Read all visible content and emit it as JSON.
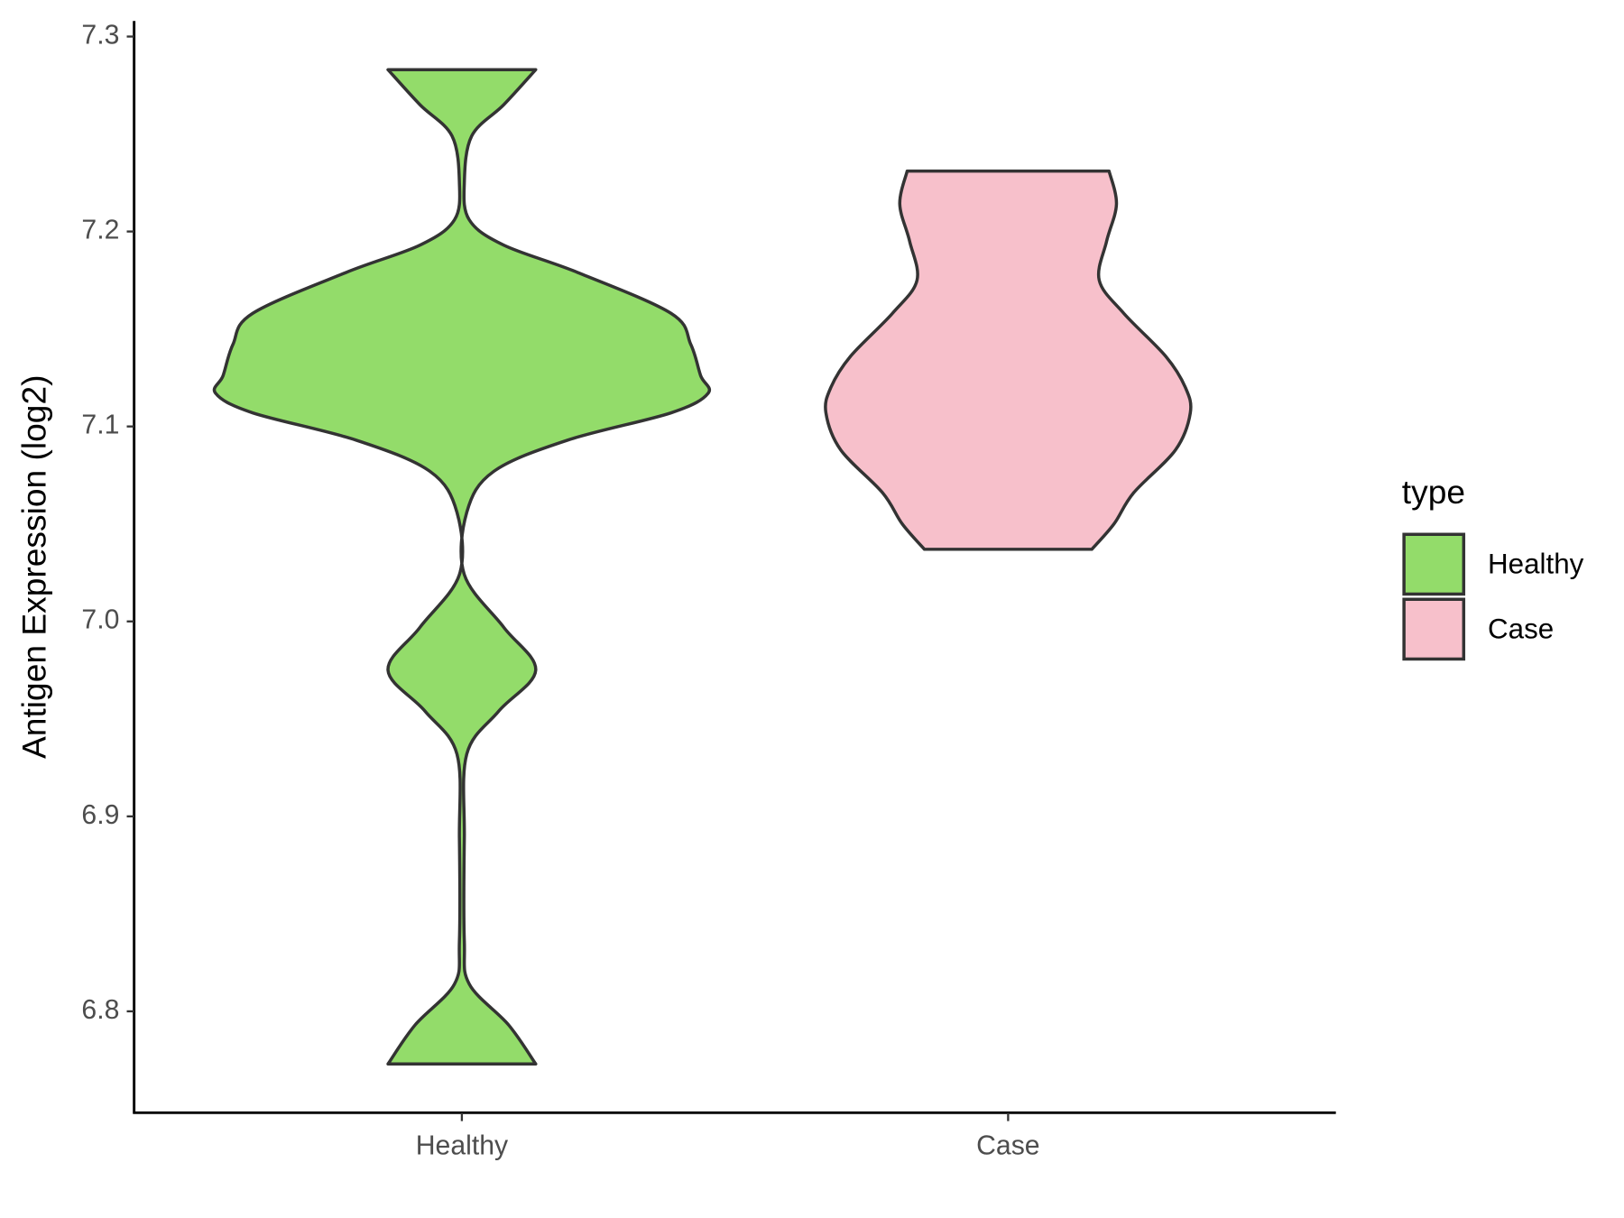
{
  "chart_data": {
    "type": "violin",
    "y_label": "Antigen Expression (log2)",
    "categories": [
      "Healthy",
      "Case"
    ],
    "legend_title": "type",
    "ylim": [
      6.748,
      7.308
    ],
    "yticks": [
      6.8,
      6.9,
      {
        "value": 7.0,
        "label": "7.0"
      },
      7.1,
      7.2,
      7.3
    ],
    "series": [
      {
        "name": "Healthy",
        "color": "#93dc6a",
        "y": [
          7.283,
          7.265,
          7.249,
          7.225,
          7.206,
          7.193,
          7.179,
          7.158,
          7.142,
          7.126,
          7.117,
          7.107,
          7.093,
          7.077,
          7.056,
          7.024,
          6.997,
          6.975,
          6.954,
          6.932,
          6.889,
          6.836,
          6.814,
          6.793,
          6.773
        ],
        "density": [
          0.3,
          0.17,
          0.04,
          0.01,
          0.03,
          0.17,
          0.47,
          0.85,
          0.93,
          0.97,
          1,
          0.85,
          0.43,
          0.13,
          0.02,
          0.01,
          0.17,
          0.3,
          0.15,
          0.02,
          0.01,
          0.01,
          0.03,
          0.19,
          0.3
        ]
      },
      {
        "name": "Case",
        "color": "#f7c0cb",
        "y": [
          7.231,
          7.214,
          7.195,
          7.175,
          7.158,
          7.136,
          7.12,
          7.107,
          7.088,
          7.066,
          7.05,
          7.037
        ],
        "density": [
          0.41,
          0.44,
          0.4,
          0.37,
          0.47,
          0.64,
          0.72,
          0.74,
          0.68,
          0.51,
          0.43,
          0.34
        ]
      }
    ]
  }
}
